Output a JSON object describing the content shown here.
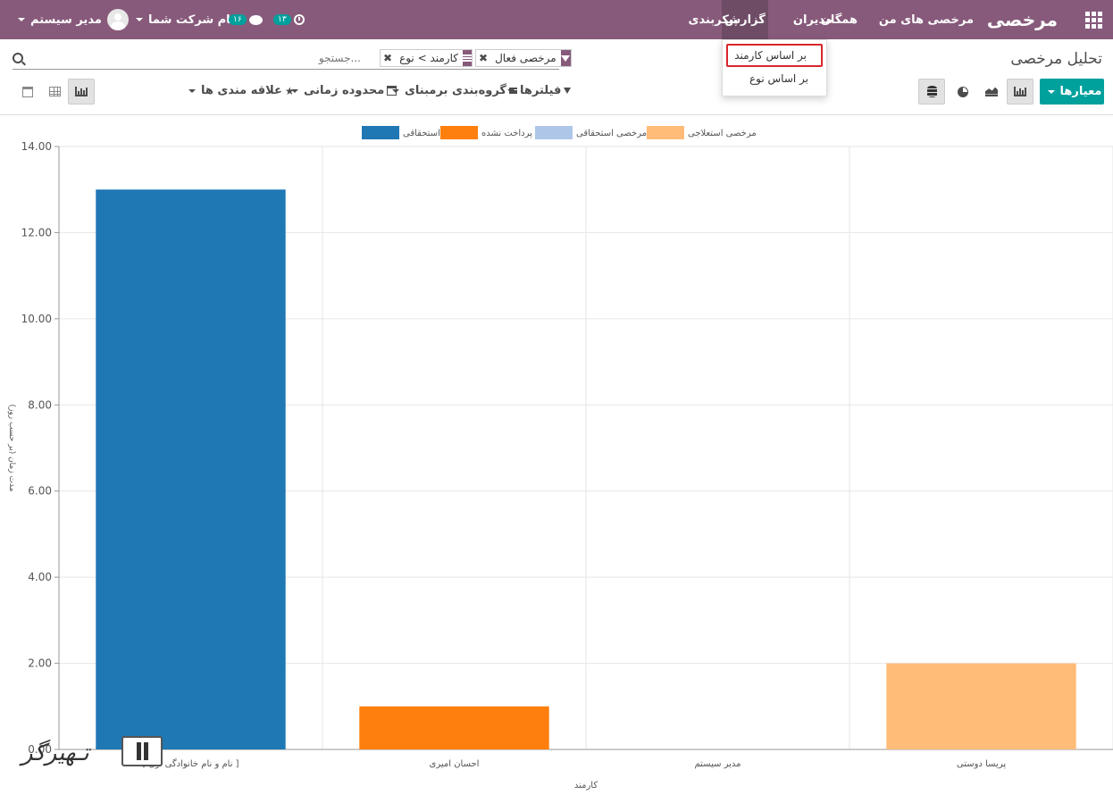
{
  "navbar": {
    "app_name": "مرخصی",
    "menu": {
      "my_leaves": "مرخصی های من",
      "everyone": "همگان",
      "managers": "مدیران",
      "reporting": "گزارش",
      "configuration": "پیکربندی"
    },
    "user_name": "مدیر سیستم",
    "company_name": "نام شرکت شما",
    "messages_count": "۱۶",
    "activities_count": "۱۳",
    "accent_color": "#875a7b"
  },
  "reporting_dropdown": {
    "items": [
      "بر اساس کارمند",
      "بر اساس نوع"
    ]
  },
  "control_panel": {
    "title": "تحلیل مرخصی",
    "search_placeholder": "جستجو...",
    "facets": {
      "filter": "مرخصی فعال",
      "group_by": "کارمند > نوع"
    },
    "measures_label": "معیارها",
    "filters_label": "فیلترها",
    "groupby_label": "گروه‌بندی برمبنای",
    "timerange_label": "محدوده زمانی",
    "favorites_label": "علاقه مندی ها",
    "primary_color": "#00a09d"
  },
  "chart_data": {
    "type": "bar",
    "categories": [
      "[ نام و نام خانوادگی اول ]",
      "احسان امیری",
      "مدیر سیستم",
      "پریسا دوستی"
    ],
    "series": [
      {
        "name": "استحقاقی",
        "color": "#1f77b4",
        "values": [
          13,
          0,
          0,
          0
        ]
      },
      {
        "name": "پرداخت نشده",
        "color": "#ff7f0e",
        "values": [
          0,
          1,
          0,
          0
        ]
      },
      {
        "name": "مرخصی استحقاقی",
        "color": "#aec7e8",
        "values": [
          0,
          0,
          0,
          0
        ]
      },
      {
        "name": "مرخصی استعلاجی",
        "color": "#ffbb78",
        "values": [
          0,
          0,
          0,
          2
        ]
      }
    ],
    "y_ticks": [
      "0.00",
      "2.00",
      "4.00",
      "6.00",
      "8.00",
      "10.00",
      "12.00",
      "14.00"
    ],
    "xlabel": "کارمند",
    "ylabel": "مدت زمان (بر حسب روز)",
    "ylim": [
      0,
      14
    ],
    "legend_position": "top",
    "grid": true
  },
  "watermark_text": "تـهیرگر"
}
